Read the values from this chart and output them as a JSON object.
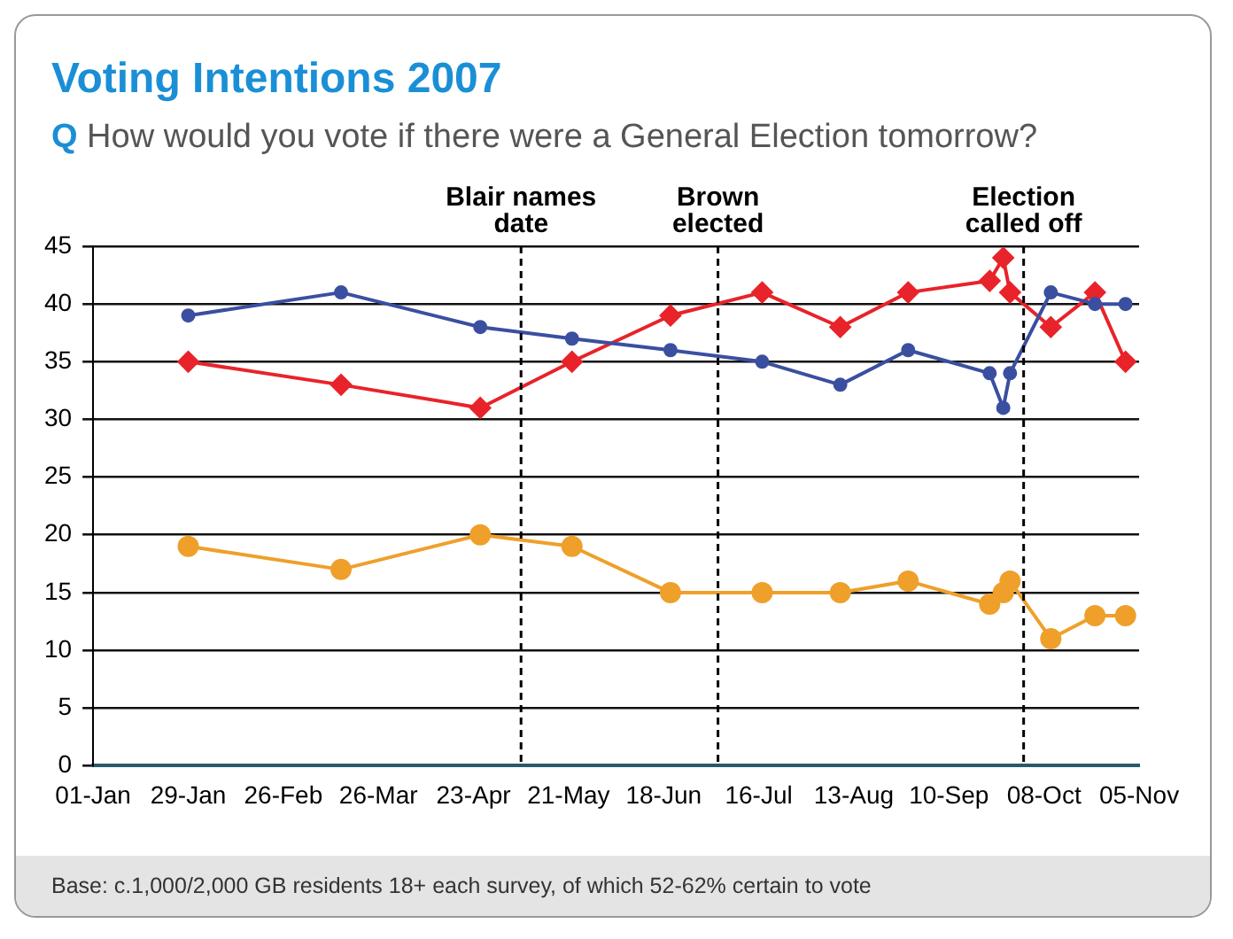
{
  "chart_data": {
    "type": "line",
    "title": "Voting Intentions 2007",
    "subtitle": "Q How would you vote if there were a General Election tomorrow?",
    "x": [
      "2007-01-29",
      "2007-03-15",
      "2007-04-25",
      "2007-05-22",
      "2007-06-20",
      "2007-07-17",
      "2007-08-09",
      "2007-08-29",
      "2007-09-22",
      "2007-09-26",
      "2007-09-28",
      "2007-10-10",
      "2007-10-23",
      "2007-11-01"
    ],
    "series": [
      {
        "color": "#3a4fa0",
        "marker": "circle",
        "values": [
          39,
          41,
          38,
          37,
          36,
          35,
          33,
          36,
          34,
          31,
          34,
          41,
          40,
          40
        ]
      },
      {
        "color": "#e8232a",
        "marker": "diamond",
        "values": [
          35,
          33,
          31,
          35,
          39,
          41,
          38,
          41,
          42,
          44,
          41,
          38,
          41,
          35
        ]
      },
      {
        "color": "#eea02a",
        "marker": "circle",
        "values": [
          19,
          17,
          20,
          19,
          15,
          15,
          15,
          16,
          14,
          15,
          16,
          11,
          13,
          13
        ]
      }
    ],
    "xlim": [
      "2007-01-01",
      "2007-11-05"
    ],
    "xticks": [
      {
        "value": "2007-01-01",
        "label": "01-Jan"
      },
      {
        "value": "2007-01-29",
        "label": "29-Jan"
      },
      {
        "value": "2007-02-26",
        "label": "26-Feb"
      },
      {
        "value": "2007-03-26",
        "label": "26-Mar"
      },
      {
        "value": "2007-04-23",
        "label": "23-Apr"
      },
      {
        "value": "2007-05-21",
        "label": "21-May"
      },
      {
        "value": "2007-06-18",
        "label": "18-Jun"
      },
      {
        "value": "2007-07-16",
        "label": "16-Jul"
      },
      {
        "value": "2007-08-13",
        "label": "13-Aug"
      },
      {
        "value": "2007-09-10",
        "label": "10-Sep"
      },
      {
        "value": "2007-10-08",
        "label": "08-Oct"
      },
      {
        "value": "2007-11-05",
        "label": "05-Nov"
      }
    ],
    "ylim": [
      0,
      45
    ],
    "yticks": [
      0,
      5,
      10,
      15,
      20,
      25,
      30,
      35,
      40,
      45
    ],
    "grid": "y",
    "legend": false,
    "line_style": "solid",
    "ref_lines": [
      {
        "axis": "x",
        "value": "2007-05-07",
        "label": "Blair names date",
        "line_style": "dashed"
      },
      {
        "axis": "x",
        "value": "2007-07-04",
        "label": "Brown elected",
        "line_style": "dashed"
      },
      {
        "axis": "x",
        "value": "2007-10-02",
        "label": "Election called off",
        "line_style": "dashed"
      }
    ],
    "annotations": [
      "Base: c.1,000/2,000 GB residents 18+ each survey, of which 52-62% certain to vote"
    ]
  }
}
